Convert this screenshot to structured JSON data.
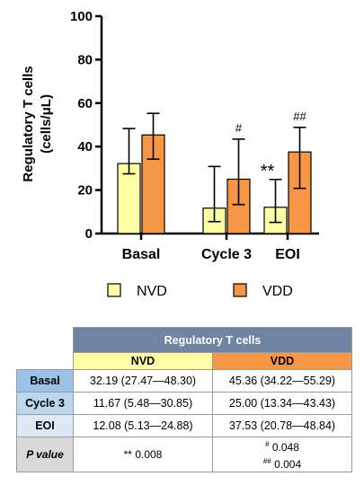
{
  "chart_data": {
    "type": "bar",
    "ylabel_line1": "Regulatory T cells",
    "ylabel_line2": "(cells/μL)",
    "ylim": [
      0,
      100
    ],
    "yticks": [
      "0",
      "20",
      "40",
      "60",
      "80",
      "100"
    ],
    "categories": [
      "Basal",
      "Cycle 3",
      "EOI"
    ],
    "series": [
      {
        "name": "NVD",
        "color": "#ffffa6",
        "values": [
          32.19,
          11.67,
          12.08
        ],
        "err_low": [
          27.47,
          5.48,
          5.13
        ],
        "err_high": [
          48.3,
          30.85,
          24.88
        ],
        "markers": [
          "",
          "",
          "**"
        ]
      },
      {
        "name": "VDD",
        "color": "#f79646",
        "values": [
          45.36,
          25.0,
          37.53
        ],
        "err_low": [
          34.22,
          13.34,
          20.78
        ],
        "err_high": [
          55.29,
          43.43,
          48.84
        ],
        "markers": [
          "",
          "#",
          "##"
        ]
      }
    ],
    "legend_placement": "bottom",
    "grid": false
  },
  "table": {
    "title": "Regulatory T cells",
    "col_nvd": "NVD",
    "col_vdd": "VDD",
    "rows": [
      {
        "label": "Basal",
        "nvd": "32.19 (27.47—48.30)",
        "vdd": "45.36 (34.22—55.29)"
      },
      {
        "label": "Cycle 3",
        "nvd": "11.67 (5.48—30.85)",
        "vdd": "25.00 (13.34—43.43)"
      },
      {
        "label": "EOI",
        "nvd": "12.08 (5.13—24.88)",
        "vdd": "37.53 (20.78—48.84)"
      }
    ],
    "p_label_italic": "P",
    "p_label_rest": " value",
    "p_nvd": "** 0.008",
    "p_vdd_1_mark": "#",
    "p_vdd_1_val": "0.048",
    "p_vdd_2_mark": "##",
    "p_vdd_2_val": "0.004"
  }
}
